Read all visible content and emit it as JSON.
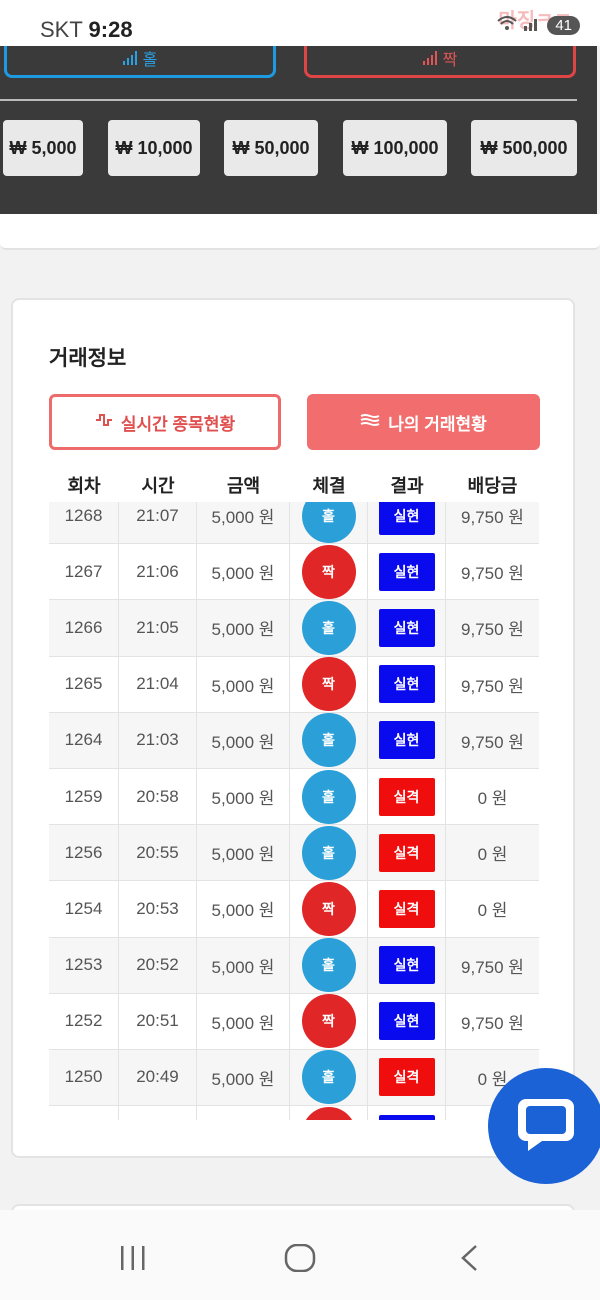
{
  "status_bar": {
    "carrier": "SKT",
    "time": "9:28",
    "battery": "41",
    "watermark": "마징ㅋㅋ"
  },
  "bet_panel": {
    "odd_label": "홀",
    "even_label": "짝",
    "amounts": [
      "₩ 5,000",
      "₩ 10,000",
      "₩ 50,000",
      "₩ 100,000",
      "₩ 500,000"
    ]
  },
  "trade": {
    "title": "거래정보",
    "tab_realtime": "실시간 종목현황",
    "tab_mytrade": "나의 거래현황",
    "headers": [
      "회차",
      "시간",
      "금액",
      "체결",
      "결과",
      "배당금"
    ],
    "rows": [
      {
        "round": "1268",
        "time": "21:07",
        "amount": "5,000 원",
        "pick": "홀",
        "result": "실현",
        "payout": "9,750 원"
      },
      {
        "round": "1267",
        "time": "21:06",
        "amount": "5,000 원",
        "pick": "짝",
        "result": "실현",
        "payout": "9,750 원"
      },
      {
        "round": "1266",
        "time": "21:05",
        "amount": "5,000 원",
        "pick": "홀",
        "result": "실현",
        "payout": "9,750 원"
      },
      {
        "round": "1265",
        "time": "21:04",
        "amount": "5,000 원",
        "pick": "짝",
        "result": "실현",
        "payout": "9,750 원"
      },
      {
        "round": "1264",
        "time": "21:03",
        "amount": "5,000 원",
        "pick": "홀",
        "result": "실현",
        "payout": "9,750 원"
      },
      {
        "round": "1259",
        "time": "20:58",
        "amount": "5,000 원",
        "pick": "홀",
        "result": "실격",
        "payout": "0 원"
      },
      {
        "round": "1256",
        "time": "20:55",
        "amount": "5,000 원",
        "pick": "홀",
        "result": "실격",
        "payout": "0 원"
      },
      {
        "round": "1254",
        "time": "20:53",
        "amount": "5,000 원",
        "pick": "짝",
        "result": "실격",
        "payout": "0 원"
      },
      {
        "round": "1253",
        "time": "20:52",
        "amount": "5,000 원",
        "pick": "홀",
        "result": "실현",
        "payout": "9,750 원"
      },
      {
        "round": "1252",
        "time": "20:51",
        "amount": "5,000 원",
        "pick": "짝",
        "result": "실현",
        "payout": "9,750 원"
      },
      {
        "round": "1250",
        "time": "20:49",
        "amount": "5,000 원",
        "pick": "홀",
        "result": "실격",
        "payout": "0 원"
      },
      {
        "round": "",
        "time": "",
        "amount": "",
        "pick": "짝",
        "result": "실현",
        "payout": ""
      }
    ]
  },
  "colors": {
    "odd": "#2a9fd8",
    "even": "#e02626",
    "win": "#0a0aee",
    "lose": "#f00d0d",
    "accent": "#f26d6d",
    "chat": "#1b62d6"
  },
  "icons": {
    "chat": "chat-bubble-icon",
    "nav_recent": "recent-apps-icon",
    "nav_home": "home-icon",
    "nav_back": "back-icon"
  }
}
